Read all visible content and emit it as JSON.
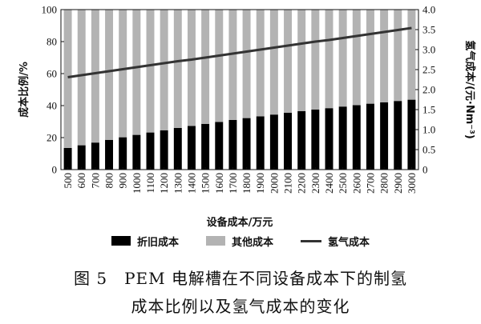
{
  "chart_data": {
    "type": "bar",
    "stacked": true,
    "categories": [
      "500",
      "600",
      "700",
      "800",
      "900",
      "1000",
      "1100",
      "1200",
      "1300",
      "1400",
      "1500",
      "1600",
      "1700",
      "1800",
      "1900",
      "2000",
      "2100",
      "2200",
      "2300",
      "2400",
      "2500",
      "2600",
      "2700",
      "2800",
      "2900",
      "3000"
    ],
    "series": [
      {
        "name": "折旧成本",
        "kind": "bar",
        "color": "#000000",
        "values": [
          13.5,
          15.2,
          16.9,
          18.6,
          20.2,
          21.7,
          23.2,
          24.6,
          26.0,
          27.3,
          28.6,
          29.8,
          31.0,
          32.2,
          33.3,
          34.4,
          35.5,
          36.5,
          37.5,
          38.4,
          39.4,
          40.3,
          41.2,
          42.0,
          42.9,
          43.7
        ]
      },
      {
        "name": "其他成本",
        "kind": "bar",
        "color": "#b3b3b3",
        "values": [
          86.5,
          84.8,
          83.1,
          81.4,
          79.8,
          78.3,
          76.8,
          75.4,
          74.0,
          72.7,
          71.4,
          70.2,
          69.0,
          67.8,
          66.7,
          65.6,
          64.5,
          63.5,
          62.5,
          61.6,
          60.6,
          59.7,
          58.8,
          58.0,
          57.1,
          56.3
        ]
      },
      {
        "name": "氢气成本",
        "kind": "line",
        "axis": "right",
        "color": "#333333",
        "values": [
          2.31,
          2.36,
          2.41,
          2.46,
          2.51,
          2.56,
          2.61,
          2.66,
          2.71,
          2.75,
          2.8,
          2.85,
          2.9,
          2.95,
          3.0,
          3.05,
          3.1,
          3.15,
          3.2,
          3.24,
          3.29,
          3.34,
          3.39,
          3.44,
          3.49,
          3.54
        ]
      }
    ],
    "xlabel": "设备成本/万元",
    "ylabel": "成本比例/%",
    "y2label": "氢气成本/(元·Nm⁻³)",
    "ylim": [
      0,
      100
    ],
    "y2lim": [
      0,
      4.0
    ],
    "yticks": [
      "0",
      "20",
      "40",
      "60",
      "80",
      "100"
    ],
    "y2ticks": [
      "0",
      "0.5",
      "1.0",
      "1.5",
      "2.0",
      "2.5",
      "3.0",
      "3.5",
      "4.0"
    ],
    "grid": false,
    "legend_position": "bottom"
  },
  "legend": {
    "items": [
      {
        "label": "折旧成本"
      },
      {
        "label": "其他成本"
      },
      {
        "label": "氢气成本"
      }
    ]
  },
  "caption": {
    "line1": "图 5　PEM 电解槽在不同设备成本下的制氢",
    "line2": "成本比例以及氢气成本的变化"
  }
}
